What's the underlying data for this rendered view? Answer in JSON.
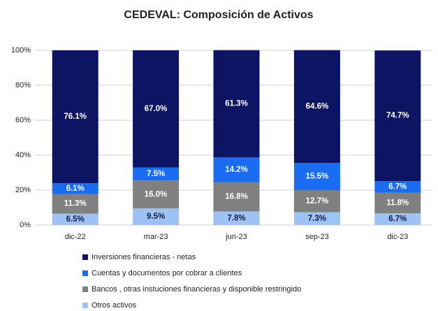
{
  "chart_data": {
    "type": "stacked_bar",
    "title": "CEDEVAL: Composición de Activos",
    "categories": [
      "dic-22",
      "mar-23",
      "jun-23",
      "sep-23",
      "dic-23"
    ],
    "series": [
      {
        "name": "Otros activos",
        "color": "#9dc3f5",
        "values": [
          6.5,
          9.5,
          7.8,
          7.3,
          6.7
        ],
        "value_labels": [
          "6.5%",
          "9.5%",
          "7.8%",
          "7.3%",
          "6.7%"
        ]
      },
      {
        "name": "Bancos , otras instuciones financieras y disponible restringido",
        "color": "#808080",
        "values": [
          11.3,
          16.0,
          16.8,
          12.7,
          11.8
        ],
        "value_labels": [
          "11.3%",
          "16.0%",
          "16.8%",
          "12.7%",
          "11.8%"
        ]
      },
      {
        "name": "Cuentas y documentos por cobrar a clientes",
        "color": "#1a6cf2",
        "values": [
          6.1,
          7.5,
          14.2,
          15.5,
          6.7
        ],
        "value_labels": [
          "6.1%",
          "7.5%",
          "14.2%",
          "15.5%",
          "6.7%"
        ]
      },
      {
        "name": "Inversiones financieras - netas",
        "color": "#0c1463",
        "values": [
          76.1,
          67.0,
          61.3,
          64.6,
          74.7
        ],
        "value_labels": [
          "76.1%",
          "67.0%",
          "61.3%",
          "64.6%",
          "74.7%"
        ]
      }
    ],
    "ylim": [
      0,
      100
    ],
    "yticks": [
      {
        "value": 0,
        "label": "0%"
      },
      {
        "value": 20,
        "label": "20%"
      },
      {
        "value": 40,
        "label": "40%"
      },
      {
        "value": 60,
        "label": "60%"
      },
      {
        "value": 80,
        "label": "80%"
      },
      {
        "value": 100,
        "label": "100%"
      }
    ],
    "grid": true,
    "legend": "bottom"
  }
}
